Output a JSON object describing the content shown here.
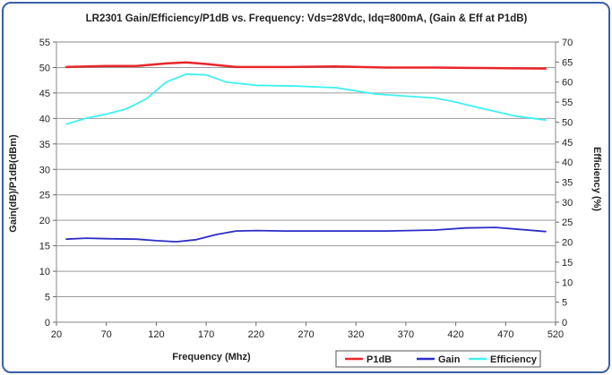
{
  "chart_data": {
    "type": "line",
    "title": "LR2301 Gain/Efficiency/P1dB vs. Frequency: Vds=28Vdc, Idq=800mA, (Gain & Eff at P1dB)",
    "xlabel": "Frequency (Mhz)",
    "ylabel": "Gain(dB)/P1dB(dBm)",
    "y2label": "Efficiency (%)",
    "xlim": [
      20,
      520
    ],
    "ylim": [
      0,
      55
    ],
    "y2lim": [
      0,
      70
    ],
    "x_ticks": [
      20,
      70,
      120,
      170,
      220,
      270,
      320,
      370,
      420,
      470,
      520
    ],
    "y_ticks": [
      0,
      5,
      10,
      15,
      20,
      25,
      30,
      35,
      40,
      45,
      50,
      55
    ],
    "y2_ticks": [
      0,
      5,
      10,
      15,
      20,
      25,
      30,
      35,
      40,
      45,
      50,
      55,
      60,
      65,
      70
    ],
    "grid": "horizontal",
    "legend_position": "bottom-right",
    "series": [
      {
        "name": "P1dB",
        "axis": "left",
        "color": "#e8262a",
        "x": [
          30,
          50,
          70,
          100,
          130,
          150,
          170,
          200,
          250,
          300,
          350,
          400,
          450,
          510
        ],
        "values": [
          50.1,
          50.2,
          50.3,
          50.3,
          50.8,
          51.0,
          50.7,
          50.1,
          50.1,
          50.2,
          50.0,
          50.0,
          49.9,
          49.8
        ]
      },
      {
        "name": "Gain",
        "axis": "left",
        "color": "#2c2cc8",
        "x": [
          30,
          50,
          70,
          100,
          120,
          140,
          160,
          180,
          200,
          220,
          250,
          300,
          350,
          400,
          430,
          460,
          510
        ],
        "values": [
          16.3,
          16.5,
          16.4,
          16.3,
          16.0,
          15.8,
          16.2,
          17.2,
          17.9,
          18.0,
          17.9,
          17.9,
          17.9,
          18.1,
          18.5,
          18.6,
          17.8
        ]
      },
      {
        "name": "Efficiency",
        "axis": "right",
        "color": "#3ff0f0",
        "x": [
          30,
          50,
          70,
          90,
          110,
          130,
          150,
          170,
          190,
          220,
          260,
          300,
          340,
          370,
          400,
          420,
          450,
          480,
          510
        ],
        "values": [
          49.5,
          51,
          52,
          53.3,
          55.8,
          60,
          62,
          61.8,
          60,
          59.2,
          59,
          58.6,
          57,
          56.5,
          56,
          55,
          53.2,
          51.5,
          50.5
        ]
      }
    ]
  }
}
